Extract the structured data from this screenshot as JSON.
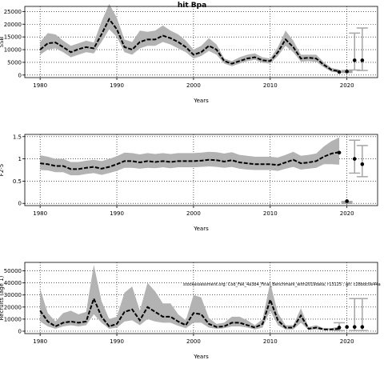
{
  "title": "hit Bpa",
  "annotation": "stockassessment.org: Cod_Fak_4a3b4_Final_Benchmark_with2019data; r13125 ; git: c28bdc0e44a",
  "colors": {
    "band": "#b3b3b3",
    "line": "#000000",
    "point": "#000000",
    "ci": "#a6a6a6"
  },
  "chart_data": [
    {
      "type": "line",
      "title": "",
      "xlabel": "Years",
      "ylabel": "SSB",
      "xlim": [
        1978,
        2024
      ],
      "ylim": [
        -1000,
        27000
      ],
      "xticks": [
        1980,
        1990,
        2000,
        2010,
        2020
      ],
      "yticks": [
        0,
        5000,
        10000,
        15000,
        20000,
        25000
      ],
      "grid": true,
      "x": [
        1980,
        1981,
        1982,
        1983,
        1984,
        1985,
        1986,
        1987,
        1988,
        1989,
        1990,
        1991,
        1992,
        1993,
        1994,
        1995,
        1996,
        1997,
        1998,
        1999,
        2000,
        2001,
        2002,
        2003,
        2004,
        2005,
        2006,
        2007,
        2008,
        2009,
        2010,
        2011,
        2012,
        2013,
        2014,
        2015,
        2016,
        2017,
        2018,
        2019
      ],
      "series": [
        {
          "values": [
            10000,
            12500,
            12800,
            11000,
            9000,
            10200,
            11000,
            10500,
            16000,
            22000,
            18000,
            11000,
            10000,
            13000,
            14000,
            14000,
            15500,
            14500,
            13000,
            11000,
            8000,
            9000,
            11500,
            10000,
            5500,
            4500,
            5500,
            6500,
            7000,
            5800,
            5500,
            9000,
            14000,
            11000,
            6500,
            6800,
            6500,
            4000,
            2000,
            1500
          ]
        }
      ],
      "lower": [
        8000,
        10000,
        10500,
        9000,
        7000,
        8000,
        9000,
        8500,
        13000,
        18000,
        15000,
        9000,
        8000,
        10500,
        11500,
        11500,
        13000,
        12000,
        10500,
        9000,
        6500,
        7500,
        9500,
        8000,
        4500,
        3500,
        4500,
        5500,
        6000,
        4800,
        4500,
        7500,
        11500,
        9000,
        5300,
        5500,
        5200,
        3000,
        1300,
        900
      ],
      "upper": [
        13000,
        16500,
        16000,
        13500,
        11500,
        12500,
        13500,
        12800,
        21000,
        28000,
        22500,
        14000,
        13000,
        17500,
        17000,
        17500,
        19500,
        17500,
        16000,
        13500,
        10000,
        11500,
        14500,
        12000,
        6500,
        5500,
        7000,
        8000,
        8500,
        7000,
        6500,
        11000,
        17500,
        13500,
        8000,
        8000,
        8000,
        5000,
        2800,
        2200
      ],
      "points": [
        {
          "x": 2019,
          "y": 1200
        },
        {
          "x": 2020,
          "y": 1400
        },
        {
          "x": 2021,
          "y": 5800
        },
        {
          "x": 2022,
          "y": 5800
        }
      ],
      "intervals": [
        {
          "x": 2020,
          "lo": 1400,
          "hi": 1400
        },
        {
          "x": 2021,
          "lo": 2000,
          "hi": 16500
        },
        {
          "x": 2022,
          "lo": 1800,
          "hi": 18500
        }
      ],
      "vlines": [
        1980,
        1990,
        2000,
        2010,
        2020
      ]
    },
    {
      "type": "line",
      "title": "",
      "xlabel": "Years",
      "ylabel": "F2-5",
      "xlim": [
        1978,
        2024
      ],
      "ylim": [
        -0.05,
        1.55
      ],
      "xticks": [
        1980,
        1990,
        2000,
        2010,
        2020
      ],
      "yticks": [
        0.0,
        0.5,
        1.0,
        1.5
      ],
      "grid": true,
      "x": [
        1980,
        1981,
        1982,
        1983,
        1984,
        1985,
        1986,
        1987,
        1988,
        1989,
        1990,
        1991,
        1992,
        1993,
        1994,
        1995,
        1996,
        1997,
        1998,
        1999,
        2000,
        2001,
        2002,
        2003,
        2004,
        2005,
        2006,
        2007,
        2008,
        2009,
        2010,
        2011,
        2012,
        2013,
        2014,
        2015,
        2016,
        2017,
        2018,
        2019
      ],
      "series": [
        {
          "values": [
            0.9,
            0.88,
            0.84,
            0.84,
            0.77,
            0.77,
            0.8,
            0.82,
            0.78,
            0.82,
            0.88,
            0.95,
            0.95,
            0.92,
            0.95,
            0.93,
            0.95,
            0.93,
            0.95,
            0.95,
            0.95,
            0.96,
            0.98,
            0.97,
            0.94,
            0.97,
            0.92,
            0.9,
            0.88,
            0.88,
            0.88,
            0.86,
            0.92,
            0.98,
            0.9,
            0.92,
            0.95,
            1.05,
            1.12,
            1.15
          ]
        }
      ],
      "lower": [
        0.75,
        0.74,
        0.7,
        0.7,
        0.63,
        0.63,
        0.66,
        0.68,
        0.64,
        0.68,
        0.73,
        0.8,
        0.8,
        0.78,
        0.8,
        0.79,
        0.81,
        0.79,
        0.81,
        0.81,
        0.81,
        0.82,
        0.83,
        0.82,
        0.8,
        0.82,
        0.78,
        0.76,
        0.75,
        0.75,
        0.75,
        0.73,
        0.78,
        0.82,
        0.76,
        0.78,
        0.8,
        0.88,
        0.88,
        0.87
      ],
      "upper": [
        1.08,
        1.05,
        1.0,
        1.0,
        0.93,
        0.93,
        0.96,
        0.98,
        0.95,
        1.0,
        1.06,
        1.14,
        1.13,
        1.1,
        1.13,
        1.11,
        1.13,
        1.11,
        1.13,
        1.13,
        1.13,
        1.14,
        1.16,
        1.15,
        1.12,
        1.15,
        1.09,
        1.07,
        1.05,
        1.05,
        1.05,
        1.03,
        1.09,
        1.16,
        1.07,
        1.09,
        1.12,
        1.28,
        1.4,
        1.48
      ],
      "points": [
        {
          "x": 2019,
          "y": 1.14
        },
        {
          "x": 2020,
          "y": 0.05
        },
        {
          "x": 2021,
          "y": 1.0
        },
        {
          "x": 2022,
          "y": 0.88
        }
      ],
      "intervals": [
        {
          "x": 2020,
          "lo": 0.02,
          "hi": 0.07
        },
        {
          "x": 2021,
          "lo": 0.68,
          "hi": 1.42
        },
        {
          "x": 2022,
          "lo": 0.6,
          "hi": 1.3
        }
      ],
      "vlines": [
        1980,
        1990,
        2000,
        2010,
        2020
      ]
    },
    {
      "type": "line",
      "title": "",
      "xlabel": "Years",
      "ylabel": "Recruits (age 1)",
      "xlim": [
        1978,
        2024
      ],
      "ylim": [
        -2000,
        57000
      ],
      "xticks": [
        1980,
        1990,
        2000,
        2010,
        2020
      ],
      "yticks": [
        0,
        10000,
        20000,
        30000,
        40000,
        50000
      ],
      "grid": true,
      "x": [
        1980,
        1981,
        1982,
        1983,
        1984,
        1985,
        1986,
        1987,
        1988,
        1989,
        1990,
        1991,
        1992,
        1993,
        1994,
        1995,
        1996,
        1997,
        1998,
        1999,
        2000,
        2001,
        2002,
        2003,
        2004,
        2005,
        2006,
        2007,
        2008,
        2009,
        2010,
        2011,
        2012,
        2013,
        2014,
        2015,
        2016,
        2017,
        2018,
        2019
      ],
      "series": [
        {
          "values": [
            17000,
            8000,
            4000,
            7000,
            8000,
            7000,
            8000,
            27000,
            12000,
            4000,
            6000,
            16000,
            18000,
            9000,
            20000,
            16000,
            12000,
            12000,
            8000,
            5000,
            15000,
            14000,
            6000,
            3500,
            4000,
            7000,
            7000,
            5000,
            3000,
            6000,
            26000,
            9000,
            3000,
            3000,
            13000,
            2000,
            3000,
            1500,
            1500,
            2000
          ]
        }
      ],
      "lower": [
        8000,
        4000,
        2000,
        4000,
        5000,
        4000,
        5000,
        14000,
        7000,
        2000,
        3000,
        8000,
        9000,
        5000,
        10000,
        8000,
        7000,
        7000,
        4500,
        2500,
        7000,
        7000,
        3000,
        2000,
        2500,
        4000,
        4000,
        3000,
        1500,
        3000,
        17000,
        5000,
        1500,
        1500,
        7000,
        1000,
        1500,
        800,
        800,
        1000
      ],
      "upper": [
        35000,
        15000,
        8000,
        15000,
        17000,
        14000,
        16000,
        55000,
        25000,
        10000,
        12000,
        32000,
        37000,
        17000,
        40000,
        33000,
        23000,
        23000,
        14000,
        9000,
        30000,
        28000,
        11000,
        6000,
        7000,
        12000,
        12000,
        9000,
        5000,
        10000,
        40000,
        15000,
        5000,
        5000,
        19000,
        3500,
        5000,
        2500,
        2500,
        4000
      ],
      "points": [
        {
          "x": 2019,
          "y": 3000
        },
        {
          "x": 2020,
          "y": 3500
        },
        {
          "x": 2021,
          "y": 3500
        },
        {
          "x": 2022,
          "y": 3500
        }
      ],
      "intervals": [
        {
          "x": 2019,
          "lo": 500,
          "hi": 7000
        },
        {
          "x": 2021,
          "lo": 500,
          "hi": 27000
        },
        {
          "x": 2022,
          "lo": 500,
          "hi": 27000
        }
      ],
      "vlines": [
        1980,
        1990,
        2000,
        2010,
        2020
      ]
    }
  ]
}
